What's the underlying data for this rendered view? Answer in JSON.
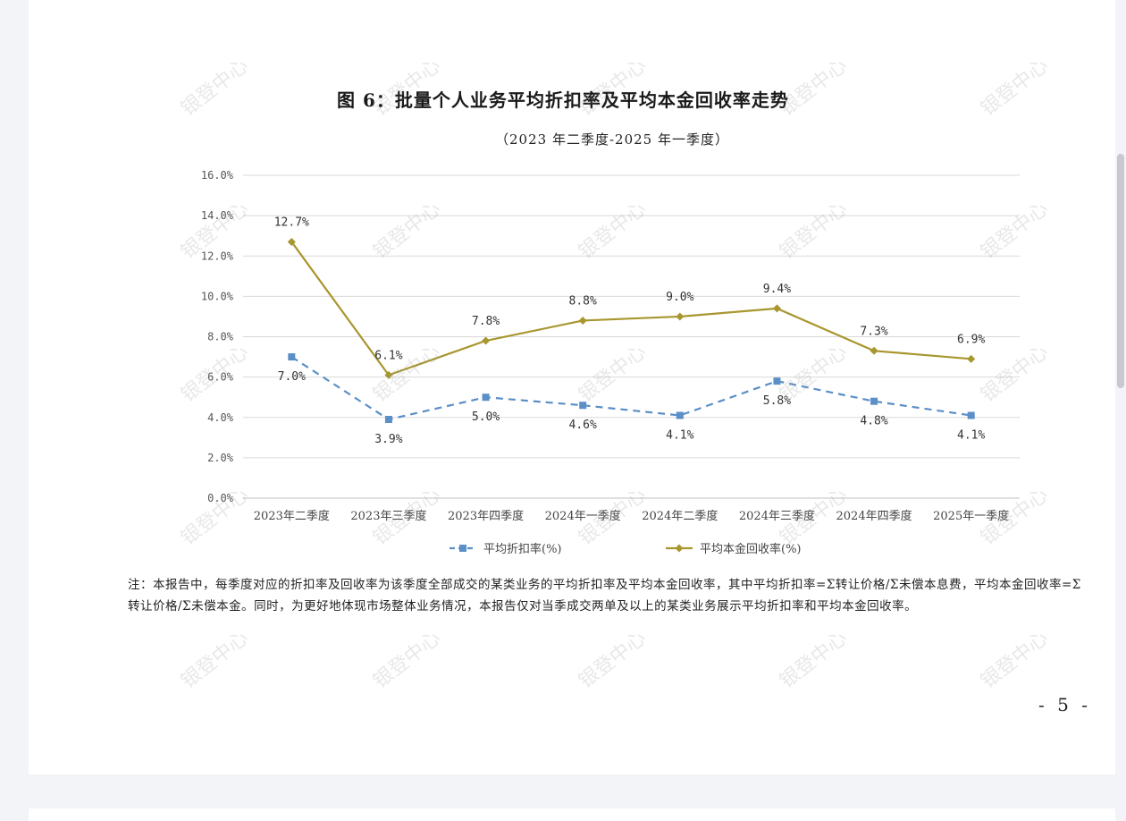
{
  "title": "图 6：批量个人业务平均折扣率及平均本金回收率走势",
  "subtitle": "（2023 年二季度-2025 年一季度）",
  "note": "注：本报告中，每季度对应的折扣率及回收率为该季度全部成交的某类业务的平均折扣率及平均本金回收率，其中平均折扣率=Σ转让价格/Σ未偿本息费，平均本金回收率=Σ转让价格/Σ未偿本金。同时，为更好地体现市场整体业务情况，本报告仅对当季成交两单及以上的某类业务展示平均折扣率和平均本金回收率。",
  "page_number": "- 5 -",
  "watermark_text": "银登中心",
  "chart_data": {
    "type": "line",
    "categories": [
      "2023年二季度",
      "2023年三季度",
      "2023年四季度",
      "2024年一季度",
      "2024年二季度",
      "2024年三季度",
      "2024年四季度",
      "2025年一季度"
    ],
    "series": [
      {
        "name": "平均折扣率(%)",
        "values": [
          7.0,
          3.9,
          5.0,
          4.6,
          4.1,
          5.8,
          4.8,
          4.1
        ],
        "labels": [
          "7.0%",
          "3.9%",
          "5.0%",
          "4.6%",
          "4.1%",
          "5.8%",
          "4.8%",
          "4.1%"
        ],
        "color": "#5b8fc7",
        "style": "dashed",
        "marker": "square"
      },
      {
        "name": "平均本金回收率(%)",
        "values": [
          12.7,
          6.1,
          7.8,
          8.8,
          9.0,
          9.4,
          7.3,
          6.9
        ],
        "labels": [
          "12.7%",
          "6.1%",
          "7.8%",
          "8.8%",
          "9.0%",
          "9.4%",
          "7.3%",
          "6.9%"
        ],
        "color": "#a8962e",
        "style": "solid",
        "marker": "diamond"
      }
    ],
    "ylim": [
      0,
      16
    ],
    "yticks": [
      0,
      2,
      4,
      6,
      8,
      10,
      12,
      14,
      16
    ],
    "ytick_labels": [
      "0.0%",
      "2.0%",
      "4.0%",
      "6.0%",
      "8.0%",
      "10.0%",
      "12.0%",
      "14.0%",
      "16.0%"
    ],
    "grid": true,
    "legend_position": "bottom"
  }
}
